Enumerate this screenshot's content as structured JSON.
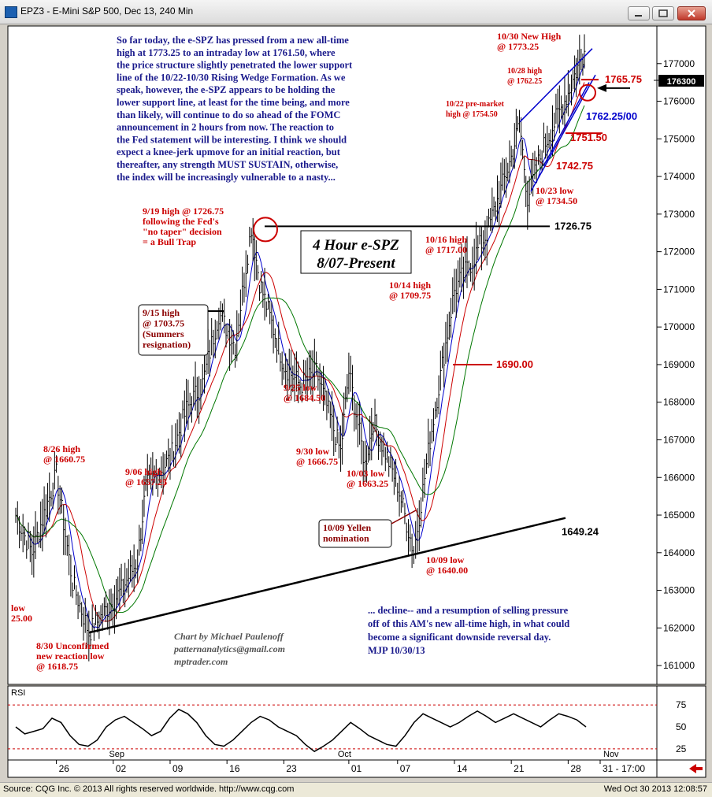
{
  "window": {
    "title": "EPZ3 - E-Mini S&P 500, Dec 13, 240 Min",
    "price_badge": "176300"
  },
  "footer": {
    "source": "Source: CQG Inc. © 2013 All rights reserved worldwide. http://www.cqg.com",
    "timestamp": "Wed Oct 30 2013 12:08:57"
  },
  "chart_data": {
    "type": "line",
    "title": "4 Hour e-SPZ",
    "subtitle": "8/07-Present",
    "ylim": [
      1605,
      1780
    ],
    "y_ticks": [
      1610,
      1620,
      1630,
      1640,
      1650,
      1660,
      1670,
      1680,
      1690,
      1700,
      1710,
      1720,
      1730,
      1740,
      1750,
      1760,
      1770
    ],
    "y_tick_labels": [
      "161000",
      "162000",
      "163000",
      "164000",
      "165000",
      "166000",
      "167000",
      "168000",
      "169000",
      "170000",
      "171000",
      "172000",
      "173000",
      "174000",
      "175000",
      "176000",
      "177000"
    ],
    "x_ticks": [
      "26",
      "02",
      "09",
      "16",
      "23",
      "01",
      "07",
      "14",
      "21",
      "28",
      "31 - 17:00"
    ],
    "x_month_labels": [
      "Sep",
      "Oct",
      "Nov"
    ],
    "series": [
      {
        "x": [
          "08-21",
          "08-23",
          "08-26",
          "08-28",
          "08-30",
          "09-03",
          "09-05",
          "09-06",
          "09-09",
          "09-11",
          "09-13",
          "09-15",
          "09-17",
          "09-19",
          "09-20",
          "09-23",
          "09-25",
          "09-27",
          "09-30",
          "10-01",
          "10-03",
          "10-04",
          "10-07",
          "10-09",
          "10-11",
          "10-14",
          "10-16",
          "10-18",
          "10-21",
          "10-22",
          "10-23",
          "10-25",
          "10-28",
          "10-29",
          "10-30"
        ],
        "values": [
          1650,
          1640,
          1660.75,
          1632,
          1618.75,
          1630,
          1638,
          1657.25,
          1665,
          1678,
          1685,
          1703.75,
          1695,
          1726.75,
          1712,
          1690,
          1684.5,
          1688,
          1666.75,
          1688,
          1663.25,
          1675,
          1658,
          1640,
          1670,
          1709.75,
          1717,
          1725,
          1745,
          1754.5,
          1734.5,
          1748,
          1762.25,
          1768,
          1773.25
        ]
      }
    ],
    "levels": [
      {
        "label": "1726.75",
        "value": 1726.75
      },
      {
        "label": "1690.00",
        "value": 1690.0
      },
      {
        "label": "1751.50",
        "value": 1751.5
      },
      {
        "label": "1742.75",
        "value": 1742.75
      },
      {
        "label": "1765.75",
        "value": 1765.75
      },
      {
        "label": "1762.25/00",
        "value": 1762.25
      },
      {
        "label": "1649.24",
        "value": 1649.24
      }
    ],
    "annotations": [
      {
        "text": [
          "8/26 high",
          "@ 1660.75"
        ],
        "color": "#cc0000"
      },
      {
        "text": [
          "low",
          "25.00"
        ],
        "color": "#cc0000"
      },
      {
        "text": [
          "8/30 Unconfirmed",
          "new reaction low",
          "@ 1618.75"
        ],
        "color": "#cc0000"
      },
      {
        "text": [
          "9/06 high",
          "@ 1657.25"
        ],
        "color": "#cc0000"
      },
      {
        "text": [
          "9/19 high @ 1726.75",
          "following the Fed's",
          "\"no taper\" decision",
          "= a Bull Trap"
        ],
        "color": "#cc0000"
      },
      {
        "text": [
          "9/25 low",
          "@ 1684.50"
        ],
        "color": "#cc0000"
      },
      {
        "text": [
          "9/30 low",
          "@ 1666.75"
        ],
        "color": "#cc0000"
      },
      {
        "text": [
          "10/03 low",
          "@ 1663.25"
        ],
        "color": "#cc0000"
      },
      {
        "text": [
          "10/09 low",
          "@ 1640.00"
        ],
        "color": "#cc0000"
      },
      {
        "text": [
          "10/14 high",
          "@ 1709.75"
        ],
        "color": "#cc0000"
      },
      {
        "text": [
          "10/16 high",
          "@ 1717.00"
        ],
        "color": "#cc0000"
      },
      {
        "text": [
          "10/22 pre-market",
          "high @ 1754.50"
        ],
        "color": "#cc0000"
      },
      {
        "text": [
          "10/23 low",
          "@ 1734.50"
        ],
        "color": "#cc0000"
      },
      {
        "text": [
          "10/28 high",
          "@ 1762.25"
        ],
        "color": "#cc0000"
      },
      {
        "text": [
          "10/30 New High",
          "@ 1773.25"
        ],
        "color": "#cc0000"
      }
    ],
    "boxed_annotations": [
      {
        "text": [
          "9/15 high",
          "@ 1703.75",
          "(Summers",
          "resignation)"
        ]
      },
      {
        "text": [
          "10/09 Yellen",
          "nomination"
        ]
      }
    ],
    "commentary_top": [
      "So far today, the e-SPZ has pressed from a new all-time",
      "high at 1773.25 to an intraday low at 1761.50, where",
      "the price structure slightly penetrated the lower support",
      "line of the 10/22-10/30 Rising Wedge Formation. As we",
      "speak, however, the e-SPZ appears to be holding the",
      "lower support line, at least for the time being, and more",
      "than likely, will continue to do so ahead of the FOMC",
      "announcement in 2 hours from now.  The reaction to",
      "the Fed statement will be interesting. I think we should",
      "expect a knee-jerk upmove for an initial reaction, but",
      "thereafter, any strength MUST SUSTAIN, otherwise,",
      "the index will be increasingly vulnerable to a nasty..."
    ],
    "commentary_bottom": [
      "... decline-- and a resumption of selling pressure",
      "off of this AM's new all-time high, in what could",
      "become a significant downside reversal day.",
      "MJP 10/30/13"
    ],
    "credits": [
      "Chart by Michael Paulenoff",
      "patternanalytics@gmail.com",
      "mptrader.com"
    ],
    "rsi": {
      "label": "RSI",
      "y_ticks": [
        "75",
        "50",
        "25"
      ],
      "levels": [
        75,
        25
      ],
      "values": [
        50,
        42,
        45,
        48,
        60,
        55,
        40,
        30,
        28,
        35,
        50,
        58,
        62,
        55,
        48,
        40,
        45,
        60,
        70,
        65,
        55,
        40,
        30,
        28,
        35,
        45,
        55,
        62,
        58,
        50,
        45,
        40,
        30,
        22,
        28,
        35,
        45,
        55,
        48,
        40,
        35,
        30,
        28,
        40,
        55,
        65,
        60,
        55,
        50,
        55,
        62,
        68,
        62,
        55,
        60,
        65,
        60,
        55,
        50,
        58,
        65,
        62,
        58,
        50
      ]
    }
  }
}
